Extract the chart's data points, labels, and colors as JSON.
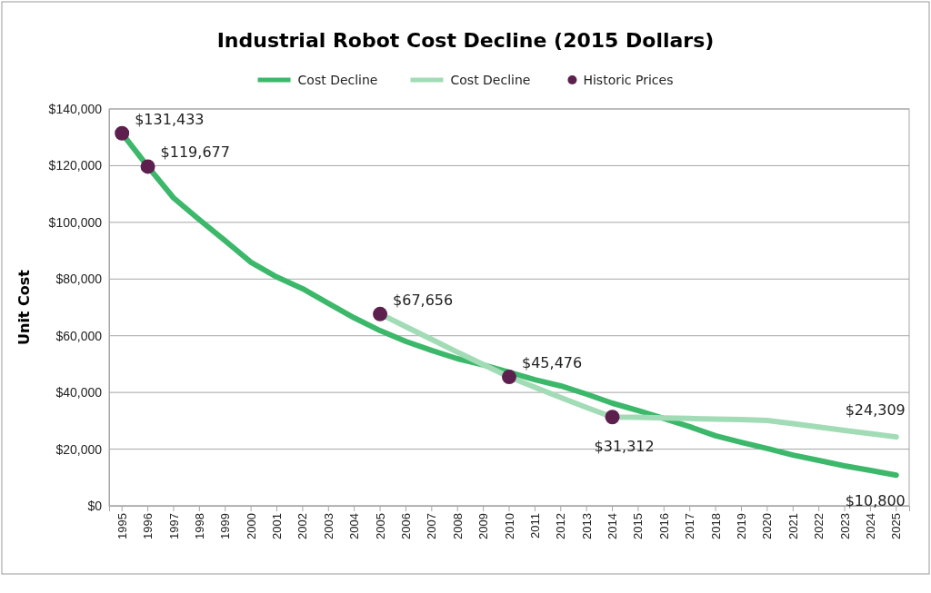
{
  "chart_data": {
    "type": "line",
    "title": "Industrial Robot Cost Decline (2015 Dollars)",
    "ylabel": "Unit Cost",
    "categories": [
      "1995",
      "1996",
      "1997",
      "1998",
      "1999",
      "2000",
      "2001",
      "2002",
      "2003",
      "2004",
      "2005",
      "2006",
      "2007",
      "2008",
      "2009",
      "2010",
      "2011",
      "2012",
      "2013",
      "2014",
      "2015",
      "2016",
      "2017",
      "2018",
      "2019",
      "2020",
      "2021",
      "2022",
      "2023",
      "2024",
      "2025"
    ],
    "series": [
      {
        "name": "Cost Decline",
        "color": "#3cb86a",
        "values": [
          131400,
          119700,
          108600,
          100900,
          93500,
          85900,
          80700,
          76600,
          71400,
          66300,
          61800,
          58000,
          54800,
          51900,
          49700,
          47100,
          44500,
          42300,
          39400,
          36200,
          33600,
          30800,
          27900,
          24700,
          22400,
          20200,
          17900,
          16000,
          14100,
          12500,
          10800
        ],
        "value_labels": [
          null,
          null,
          null,
          null,
          null,
          null,
          null,
          null,
          null,
          null,
          null,
          null,
          null,
          null,
          null,
          null,
          null,
          null,
          null,
          null,
          null,
          null,
          null,
          null,
          null,
          null,
          null,
          null,
          null,
          null,
          "$10,800"
        ]
      },
      {
        "name": "Cost Decline",
        "color": "#a2dcb6",
        "values": [
          null,
          null,
          null,
          null,
          null,
          null,
          null,
          null,
          null,
          null,
          67700,
          63200,
          58700,
          54200,
          49800,
          45500,
          41800,
          38200,
          34700,
          31300,
          31200,
          31000,
          30800,
          30600,
          30400,
          30100,
          29000,
          27800,
          26600,
          25500,
          24309
        ],
        "value_labels": [
          null,
          null,
          null,
          null,
          null,
          null,
          null,
          null,
          null,
          null,
          null,
          null,
          null,
          null,
          null,
          null,
          null,
          null,
          null,
          null,
          null,
          null,
          null,
          null,
          null,
          null,
          null,
          null,
          null,
          null,
          "$24,309"
        ]
      },
      {
        "name": "Historic Prices",
        "type": "scatter",
        "color": "#5c1f4e",
        "marker": "circle",
        "values": [
          131433,
          119677,
          null,
          null,
          null,
          null,
          null,
          null,
          null,
          null,
          67656,
          null,
          null,
          null,
          null,
          45476,
          null,
          null,
          null,
          31312,
          null,
          null,
          null,
          null,
          null,
          null,
          null,
          null,
          null,
          null,
          null
        ],
        "value_labels": [
          "$131,433",
          "$119,677",
          null,
          null,
          null,
          null,
          null,
          null,
          null,
          null,
          "$67,656",
          null,
          null,
          null,
          null,
          "$45,476",
          null,
          null,
          null,
          "$31,312",
          null,
          null,
          null,
          null,
          null,
          null,
          null,
          null,
          null,
          null,
          null
        ]
      }
    ],
    "ylim": [
      0,
      140000
    ],
    "yticks": [
      {
        "value": 0,
        "label": "$0"
      },
      {
        "value": 20000,
        "label": "$20,000"
      },
      {
        "value": 40000,
        "label": "$40,000"
      },
      {
        "value": 60000,
        "label": "$60,000"
      },
      {
        "value": 80000,
        "label": "$80,000"
      },
      {
        "value": 100000,
        "label": "$100,000"
      },
      {
        "value": 120000,
        "label": "$120,000"
      },
      {
        "value": 140000,
        "label": "$140,000"
      }
    ],
    "grid": "y",
    "legend": "top"
  }
}
